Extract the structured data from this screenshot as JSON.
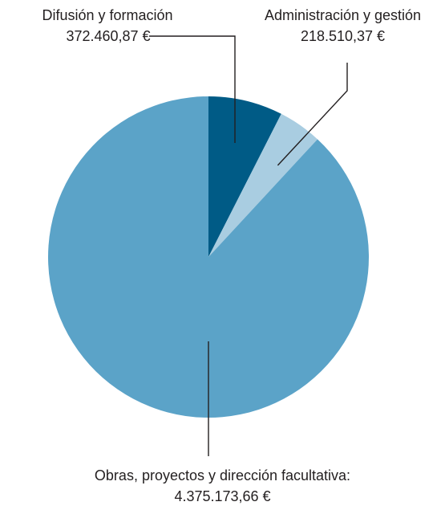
{
  "chart_data": {
    "type": "pie",
    "title": "",
    "unit": "€",
    "slices": [
      {
        "label": "Difusión y formación",
        "value": 372460.87,
        "display_value": "372.460,87 €",
        "color": "#005b86"
      },
      {
        "label": "Administración y gestión",
        "value": 218510.37,
        "display_value": "218.510,37 €",
        "color": "#a9cde1"
      },
      {
        "label": "Obras, proyectos y dirección facultativa:",
        "value": 4375173.66,
        "display_value": "4.375.173,66 €",
        "color": "#5ba3c8"
      }
    ],
    "start_angle_deg": 0,
    "direction": "clockwise",
    "legend": "none",
    "leader_line_color": "#231f20"
  }
}
